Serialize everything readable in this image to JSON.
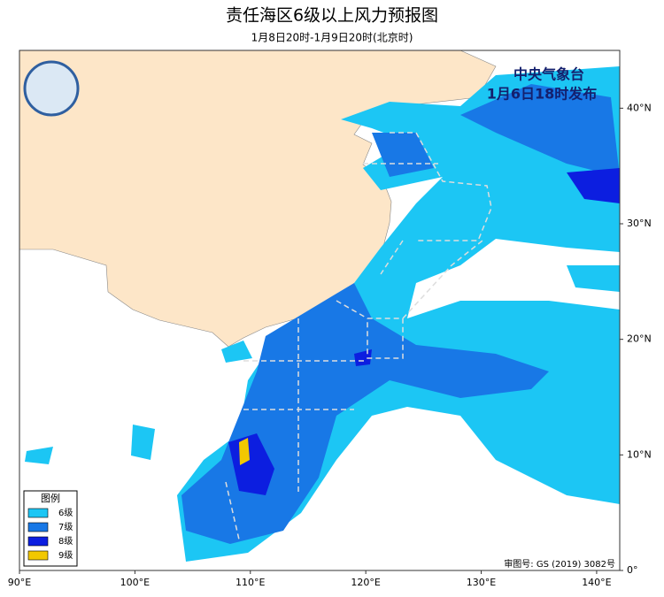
{
  "header": {
    "title": "责任海区6级以上风力预报图",
    "subtitle": "1月8日20时-1月9日20时(北京时)"
  },
  "issuer": {
    "agency": "中央气象台",
    "issued": "1月6日18时发布"
  },
  "map": {
    "lonlim": [
      90,
      142
    ],
    "latlim": [
      0,
      45
    ],
    "xticks": [
      {
        "value": 90,
        "label": "90°E"
      },
      {
        "value": 100,
        "label": "100°E"
      },
      {
        "value": 110,
        "label": "110°E"
      },
      {
        "value": 120,
        "label": "120°E"
      },
      {
        "value": 130,
        "label": "130°E"
      },
      {
        "value": 140,
        "label": "140°E"
      }
    ],
    "yticks": [
      {
        "value": 0,
        "label": "0°"
      },
      {
        "value": 10,
        "label": "10°N"
      },
      {
        "value": 20,
        "label": "20°N"
      },
      {
        "value": 30,
        "label": "30°N"
      },
      {
        "value": 40,
        "label": "40°N"
      }
    ]
  },
  "legend": {
    "title": "图例",
    "items": [
      {
        "label": "6级",
        "color": "#1cc6f4"
      },
      {
        "label": "7级",
        "color": "#1878e6"
      },
      {
        "label": "8级",
        "color": "#0c1ee0"
      },
      {
        "label": "9级",
        "color": "#f2c800"
      }
    ]
  },
  "review_number": "审图号: GS (2019) 3082号"
}
